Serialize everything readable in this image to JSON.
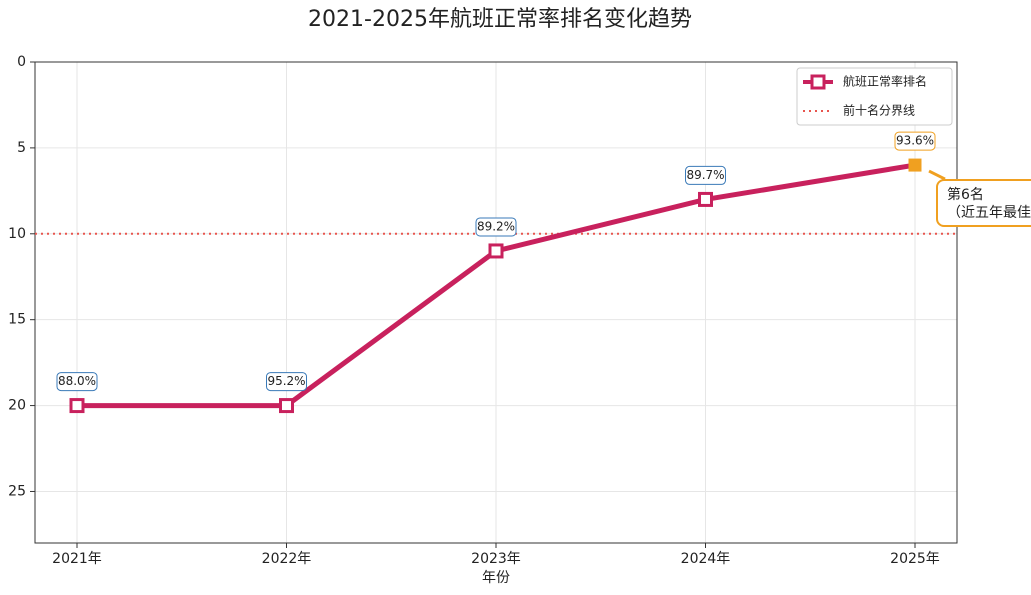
{
  "chart_data": {
    "type": "line",
    "title": "2021-2025年航班正常率排名变化趋势",
    "x_label": "年份",
    "categories": [
      "2021年",
      "2022年",
      "2023年",
      "2024年",
      "2025年"
    ],
    "series": [
      {
        "name": "航班正常率排名",
        "color": "#c8215d",
        "values": [
          20,
          20,
          11,
          8,
          6
        ]
      }
    ],
    "rate_labels": [
      "88.0%",
      "95.2%",
      "89.2%",
      "89.7%",
      "93.6%"
    ],
    "reference_line": {
      "name": "前十名分界线",
      "value": 10,
      "color": "#e8554e"
    },
    "highlight": {
      "color": "#f0a020",
      "lines": [
        "第6名",
        "（近五年最佳"
      ]
    },
    "ylim": [
      28,
      0
    ],
    "yticks": [
      0,
      5,
      10,
      15,
      20,
      25
    ],
    "grid": true,
    "legend": "upper right"
  }
}
